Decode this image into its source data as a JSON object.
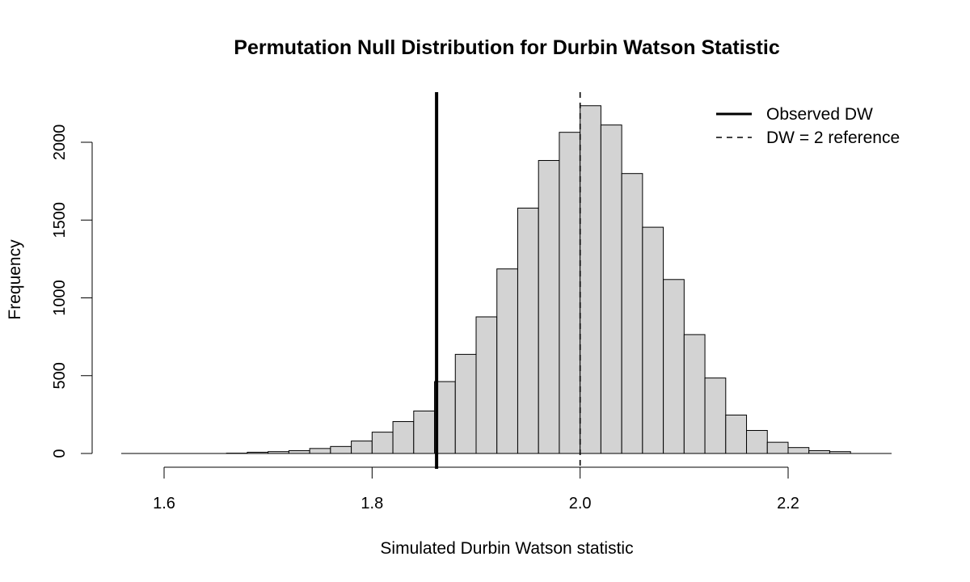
{
  "chart_data": {
    "type": "bar",
    "title": "Permutation Null Distribution for Durbin Watson Statistic",
    "xlabel": "Simulated Durbin Watson statistic",
    "ylabel": "Frequency",
    "bin_width": 0.02,
    "bins": [
      {
        "x0": 1.68,
        "x1": 1.7,
        "count": 8
      },
      {
        "x0": 1.7,
        "x1": 1.72,
        "count": 12
      },
      {
        "x0": 1.72,
        "x1": 1.74,
        "count": 18
      },
      {
        "x0": 1.74,
        "x1": 1.76,
        "count": 32
      },
      {
        "x0": 1.76,
        "x1": 1.78,
        "count": 45
      },
      {
        "x0": 1.78,
        "x1": 1.8,
        "count": 80
      },
      {
        "x0": 1.8,
        "x1": 1.82,
        "count": 137
      },
      {
        "x0": 1.82,
        "x1": 1.84,
        "count": 205
      },
      {
        "x0": 1.84,
        "x1": 1.86,
        "count": 273
      },
      {
        "x0": 1.86,
        "x1": 1.88,
        "count": 462
      },
      {
        "x0": 1.88,
        "x1": 1.9,
        "count": 637
      },
      {
        "x0": 1.9,
        "x1": 1.92,
        "count": 878
      },
      {
        "x0": 1.92,
        "x1": 1.94,
        "count": 1186
      },
      {
        "x0": 1.94,
        "x1": 1.96,
        "count": 1577
      },
      {
        "x0": 1.96,
        "x1": 1.98,
        "count": 1883
      },
      {
        "x0": 1.98,
        "x1": 2.0,
        "count": 2064
      },
      {
        "x0": 2.0,
        "x1": 2.02,
        "count": 2235
      },
      {
        "x0": 2.02,
        "x1": 2.04,
        "count": 2111
      },
      {
        "x0": 2.04,
        "x1": 2.06,
        "count": 1799
      },
      {
        "x0": 2.06,
        "x1": 2.08,
        "count": 1454
      },
      {
        "x0": 2.08,
        "x1": 2.1,
        "count": 1118
      },
      {
        "x0": 2.1,
        "x1": 2.12,
        "count": 764
      },
      {
        "x0": 2.12,
        "x1": 2.14,
        "count": 485
      },
      {
        "x0": 2.14,
        "x1": 2.16,
        "count": 247
      },
      {
        "x0": 2.16,
        "x1": 2.18,
        "count": 148
      },
      {
        "x0": 2.18,
        "x1": 2.2,
        "count": 72
      },
      {
        "x0": 2.2,
        "x1": 2.22,
        "count": 38
      },
      {
        "x0": 2.22,
        "x1": 2.24,
        "count": 18
      },
      {
        "x0": 2.24,
        "x1": 2.26,
        "count": 12
      },
      {
        "x0": 2.26,
        "x1": 2.28,
        "count": 0
      },
      {
        "x0": 1.6,
        "x1": 1.62,
        "count": 0
      },
      {
        "x0": 1.62,
        "x1": 1.64,
        "count": 0
      },
      {
        "x0": 1.64,
        "x1": 1.66,
        "count": 0
      },
      {
        "x0": 1.66,
        "x1": 1.68,
        "count": 2
      }
    ],
    "xlim": [
      1.56,
      2.3
    ],
    "ylim": [
      0,
      2300
    ],
    "x_ticks": [
      1.6,
      1.8,
      2.0,
      2.2
    ],
    "x_tick_labels": [
      "1.6",
      "1.8",
      "2.0",
      "2.2"
    ],
    "y_ticks": [
      0,
      500,
      1000,
      1500,
      2000
    ],
    "y_tick_labels": [
      "0",
      "500",
      "1000",
      "1500",
      "2000"
    ],
    "observed_dw": 1.862,
    "reference_dw": 2.0,
    "bar_fill": "#d3d3d3",
    "bar_stroke": "#000000",
    "grid": false,
    "legend_position": "top-right",
    "legend": [
      {
        "label": "Observed DW",
        "style": "solid"
      },
      {
        "label": "DW = 2 reference",
        "style": "dashed"
      }
    ]
  }
}
